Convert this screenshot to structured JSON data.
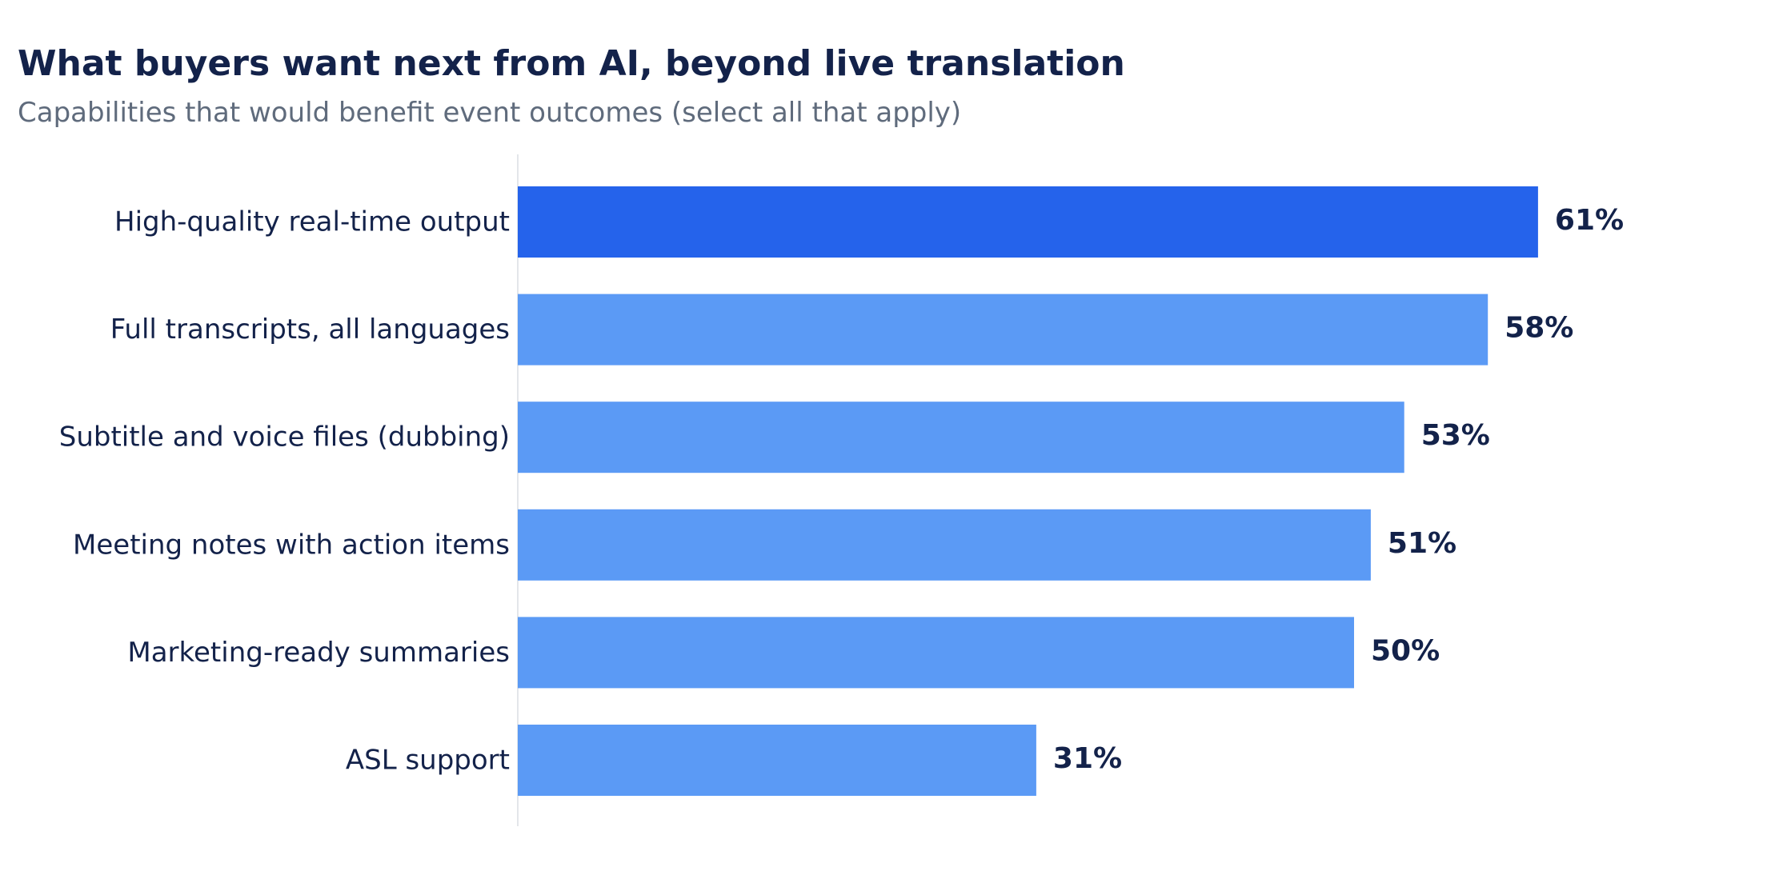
{
  "colors": {
    "highlight": "#2563eb",
    "bar": "#5b9af5",
    "text_dark": "#13224a",
    "text_muted": "#5f6b7c",
    "axis": "#e3e6ea"
  },
  "chart_data": {
    "type": "bar",
    "orientation": "horizontal",
    "title": "What buyers want next from AI, beyond live translation",
    "subtitle": "Capabilities that would benefit event outcomes (select all that apply)",
    "categories": [
      "High-quality real-time output",
      "Full transcripts, all languages",
      "Subtitle and voice files (dubbing)",
      "Meeting notes with action items",
      "Marketing-ready summaries",
      "ASL support"
    ],
    "values": [
      61,
      58,
      53,
      51,
      50,
      31
    ],
    "value_labels": [
      "61%",
      "58%",
      "53%",
      "51%",
      "50%",
      "31%"
    ],
    "highlighted_index": 0,
    "xlim": [
      0,
      75
    ],
    "grid": false,
    "legend": "none"
  }
}
